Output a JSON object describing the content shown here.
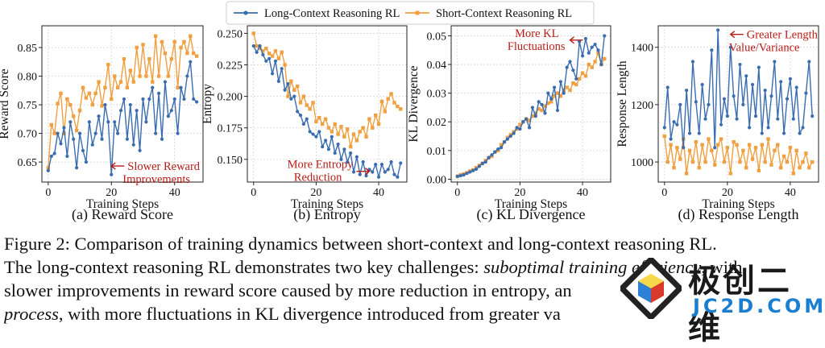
{
  "legend": [
    {
      "label": "Long-Context Reasoning RL",
      "color": "#3a6db0"
    },
    {
      "label": "Short-Context Reasoning RL",
      "color": "#f0a040"
    }
  ],
  "chart_data": [
    {
      "type": "line",
      "title": "(a) Reward Score",
      "xlabel": "Training Steps",
      "ylabel": "Reward Score",
      "xlim": [
        -2,
        49
      ],
      "ylim": [
        0.615,
        0.888
      ],
      "xticks": [
        0,
        20,
        40
      ],
      "yticks": [
        0.65,
        0.7,
        0.75,
        0.8,
        0.85
      ],
      "ytick_labels": [
        "0.65",
        "0.70",
        "0.75",
        "0.80",
        "0.85"
      ],
      "grid": true,
      "annotation": {
        "text": [
          "Slower Reward",
          "Improvements"
        ],
        "arrow_tip": [
          20,
          0.643
        ],
        "text_anchor": [
          34,
          0.643
        ]
      },
      "series": [
        {
          "name": "Long-Context Reasoning RL",
          "x": [
            0,
            1,
            2,
            3,
            4,
            5,
            6,
            7,
            8,
            9,
            10,
            11,
            12,
            13,
            14,
            15,
            16,
            17,
            18,
            19,
            20,
            21,
            22,
            23,
            24,
            25,
            26,
            27,
            28,
            29,
            30,
            31,
            32,
            33,
            34,
            35,
            36,
            37,
            38,
            39,
            40,
            41,
            42,
            43,
            44,
            45,
            46,
            47
          ],
          "values": [
            0.635,
            0.66,
            0.665,
            0.7,
            0.682,
            0.71,
            0.66,
            0.72,
            0.69,
            0.64,
            0.7,
            0.67,
            0.65,
            0.72,
            0.68,
            0.7,
            0.73,
            0.69,
            0.75,
            0.72,
            0.628,
            0.72,
            0.7,
            0.74,
            0.76,
            0.69,
            0.75,
            0.68,
            0.74,
            0.67,
            0.76,
            0.72,
            0.76,
            0.78,
            0.7,
            0.77,
            0.69,
            0.79,
            0.73,
            0.74,
            0.76,
            0.7,
            0.78,
            0.76,
            0.8,
            0.825,
            0.76,
            0.755
          ]
        },
        {
          "name": "Short-Context Reasoning RL",
          "x": [
            0,
            1,
            2,
            3,
            4,
            5,
            6,
            7,
            8,
            9,
            10,
            11,
            12,
            13,
            14,
            15,
            16,
            17,
            18,
            19,
            20,
            21,
            22,
            23,
            24,
            25,
            26,
            27,
            28,
            29,
            30,
            31,
            32,
            33,
            34,
            35,
            36,
            37,
            38,
            39,
            40,
            41,
            42,
            43,
            44,
            45,
            46,
            47
          ],
          "values": [
            0.64,
            0.715,
            0.7,
            0.752,
            0.77,
            0.7,
            0.76,
            0.75,
            0.73,
            0.705,
            0.74,
            0.78,
            0.762,
            0.77,
            0.75,
            0.77,
            0.79,
            0.748,
            0.78,
            0.82,
            0.76,
            0.8,
            0.78,
            0.79,
            0.83,
            0.78,
            0.81,
            0.79,
            0.85,
            0.8,
            0.855,
            0.8,
            0.83,
            0.79,
            0.87,
            0.8,
            0.86,
            0.84,
            0.8,
            0.83,
            0.86,
            0.78,
            0.85,
            0.86,
            0.84,
            0.87,
            0.84,
            0.835
          ]
        }
      ]
    },
    {
      "type": "line",
      "title": "(b) Entropy",
      "xlabel": "Training Steps",
      "ylabel": "Entropy",
      "xlim": [
        -2,
        49
      ],
      "ylim": [
        0.132,
        0.256
      ],
      "xticks": [
        0,
        20,
        40
      ],
      "yticks": [
        0.15,
        0.175,
        0.2,
        0.225,
        0.25
      ],
      "ytick_labels": [
        "0.150",
        "0.175",
        "0.200",
        "0.225",
        "0.250"
      ],
      "grid": true,
      "annotation": {
        "text": [
          "More Entropy",
          "Reduction"
        ],
        "arrow_tip": [
          37,
          0.1405
        ],
        "text_anchor": [
          27,
          0.1405
        ]
      },
      "series": [
        {
          "name": "Long-Context Reasoning RL",
          "x": [
            0,
            1,
            2,
            3,
            4,
            5,
            6,
            7,
            8,
            9,
            10,
            11,
            12,
            13,
            14,
            15,
            16,
            17,
            18,
            19,
            20,
            21,
            22,
            23,
            24,
            25,
            26,
            27,
            28,
            29,
            30,
            31,
            32,
            33,
            34,
            35,
            36,
            37,
            38,
            39,
            40,
            41,
            42,
            43,
            44,
            45,
            46,
            47
          ],
          "values": [
            0.24,
            0.235,
            0.24,
            0.233,
            0.228,
            0.23,
            0.218,
            0.228,
            0.212,
            0.222,
            0.205,
            0.21,
            0.198,
            0.2,
            0.188,
            0.185,
            0.178,
            0.182,
            0.172,
            0.17,
            0.168,
            0.172,
            0.16,
            0.165,
            0.158,
            0.168,
            0.155,
            0.162,
            0.15,
            0.158,
            0.148,
            0.155,
            0.14,
            0.152,
            0.138,
            0.148,
            0.137,
            0.142,
            0.14,
            0.146,
            0.136,
            0.146,
            0.14,
            0.142,
            0.148,
            0.138,
            0.136,
            0.147
          ]
        },
        {
          "name": "Short-Context Reasoning RL",
          "x": [
            0,
            1,
            2,
            3,
            4,
            5,
            6,
            7,
            8,
            9,
            10,
            11,
            12,
            13,
            14,
            15,
            16,
            17,
            18,
            19,
            20,
            21,
            22,
            23,
            24,
            25,
            26,
            27,
            28,
            29,
            30,
            31,
            32,
            33,
            34,
            35,
            36,
            37,
            38,
            39,
            40,
            41,
            42,
            43,
            44,
            45,
            46,
            47
          ],
          "values": [
            0.25,
            0.24,
            0.238,
            0.236,
            0.238,
            0.234,
            0.232,
            0.236,
            0.23,
            0.235,
            0.225,
            0.2,
            0.212,
            0.205,
            0.208,
            0.195,
            0.2,
            0.193,
            0.19,
            0.195,
            0.18,
            0.183,
            0.178,
            0.182,
            0.175,
            0.172,
            0.178,
            0.17,
            0.176,
            0.168,
            0.174,
            0.16,
            0.17,
            0.165,
            0.172,
            0.175,
            0.168,
            0.182,
            0.175,
            0.185,
            0.178,
            0.196,
            0.188,
            0.198,
            0.202,
            0.195,
            0.192,
            0.19
          ]
        }
      ]
    },
    {
      "type": "line",
      "title": "(c) KL Divergence",
      "xlabel": "Training Steps",
      "ylabel": "KL Divergence",
      "xlim": [
        -2,
        49
      ],
      "ylim": [
        -0.001,
        0.0535
      ],
      "xticks": [
        0,
        20,
        40
      ],
      "yticks": [
        0.0,
        0.01,
        0.02,
        0.03,
        0.04,
        0.05
      ],
      "ytick_labels": [
        "0.00",
        "0.01",
        "0.02",
        "0.03",
        "0.04",
        "0.05"
      ],
      "grid": true,
      "annotation": {
        "text": [
          "More KL",
          "Fluctuations"
        ],
        "arrow_tip": [
          36,
          0.0485
        ],
        "text_anchor": [
          40,
          0.0485
        ]
      },
      "series": [
        {
          "name": "Long-Context Reasoning RL",
          "x": [
            0,
            1,
            2,
            3,
            4,
            5,
            6,
            7,
            8,
            9,
            10,
            11,
            12,
            13,
            14,
            15,
            16,
            17,
            18,
            19,
            20,
            21,
            22,
            23,
            24,
            25,
            26,
            27,
            28,
            29,
            30,
            31,
            32,
            33,
            34,
            35,
            36,
            37,
            38,
            39,
            40,
            41,
            42,
            43,
            44,
            45,
            46,
            47
          ],
          "values": [
            0.001,
            0.0012,
            0.0015,
            0.002,
            0.0025,
            0.003,
            0.0035,
            0.0045,
            0.0055,
            0.006,
            0.0075,
            0.0085,
            0.0095,
            0.0105,
            0.011,
            0.013,
            0.014,
            0.015,
            0.016,
            0.018,
            0.0175,
            0.02,
            0.021,
            0.018,
            0.025,
            0.022,
            0.027,
            0.026,
            0.023,
            0.03,
            0.028,
            0.032,
            0.024,
            0.034,
            0.03,
            0.039,
            0.041,
            0.038,
            0.035,
            0.048,
            0.043,
            0.049,
            0.044,
            0.046,
            0.047,
            0.045,
            0.04,
            0.05
          ]
        },
        {
          "name": "Short-Context Reasoning RL",
          "x": [
            0,
            1,
            2,
            3,
            4,
            5,
            6,
            7,
            8,
            9,
            10,
            11,
            12,
            13,
            14,
            15,
            16,
            17,
            18,
            19,
            20,
            21,
            22,
            23,
            24,
            25,
            26,
            27,
            28,
            29,
            30,
            31,
            32,
            33,
            34,
            35,
            36,
            37,
            38,
            39,
            40,
            41,
            42,
            43,
            44,
            45,
            46,
            47
          ],
          "values": [
            0.001,
            0.0015,
            0.0018,
            0.0022,
            0.0028,
            0.0032,
            0.004,
            0.0048,
            0.0055,
            0.0065,
            0.0075,
            0.008,
            0.0095,
            0.01,
            0.012,
            0.013,
            0.0145,
            0.0155,
            0.0165,
            0.0175,
            0.019,
            0.02,
            0.021,
            0.0205,
            0.022,
            0.023,
            0.0245,
            0.024,
            0.0255,
            0.0265,
            0.027,
            0.029,
            0.03,
            0.029,
            0.031,
            0.032,
            0.031,
            0.0335,
            0.033,
            0.035,
            0.037,
            0.036,
            0.04,
            0.039,
            0.041,
            0.044,
            0.04,
            0.042
          ]
        }
      ]
    },
    {
      "type": "line",
      "title": "(d) Response Length",
      "xlabel": "Training Steps",
      "ylabel": "Response Length",
      "xlim": [
        -2,
        49
      ],
      "ylim": [
        930,
        1475
      ],
      "xticks": [
        0,
        20,
        40
      ],
      "yticks": [
        1000,
        1200,
        1400
      ],
      "ytick_labels": [
        "1000",
        "1200",
        "1400"
      ],
      "grid": true,
      "annotation": {
        "text": [
          "Greater Length",
          "Value/Variance"
        ],
        "arrow_tip": [
          21,
          1445
        ],
        "text_anchor": [
          25,
          1445
        ]
      },
      "series": [
        {
          "name": "Long-Context Reasoning RL",
          "x": [
            0,
            1,
            2,
            3,
            4,
            5,
            6,
            7,
            8,
            9,
            10,
            11,
            12,
            13,
            14,
            15,
            16,
            17,
            18,
            19,
            20,
            21,
            22,
            23,
            24,
            25,
            26,
            27,
            28,
            29,
            30,
            31,
            32,
            33,
            34,
            35,
            36,
            37,
            38,
            39,
            40,
            41,
            42,
            43,
            44,
            45,
            46,
            47
          ],
          "values": [
            1120,
            1260,
            1080,
            1140,
            1130,
            1200,
            1050,
            1250,
            1100,
            1350,
            1210,
            1100,
            1270,
            1150,
            1200,
            1390,
            1050,
            1460,
            1130,
            1220,
            1160,
            1400,
            1230,
            1150,
            1340,
            1200,
            1300,
            1120,
            1270,
            1160,
            1330,
            1100,
            1250,
            1120,
            1230,
            1350,
            1150,
            1280,
            1100,
            1220,
            1290,
            1150,
            1260,
            1100,
            1120,
            1240,
            1350,
            1160
          ]
        },
        {
          "name": "Short-Context Reasoning RL",
          "x": [
            0,
            1,
            2,
            3,
            4,
            5,
            6,
            7,
            8,
            9,
            10,
            11,
            12,
            13,
            14,
            15,
            16,
            17,
            18,
            19,
            20,
            21,
            22,
            23,
            24,
            25,
            26,
            27,
            28,
            29,
            30,
            31,
            32,
            33,
            34,
            35,
            36,
            37,
            38,
            39,
            40,
            41,
            42,
            43,
            44,
            45,
            46,
            47
          ],
          "values": [
            1090,
            1000,
            1060,
            980,
            1050,
            1010,
            1080,
            960,
            1040,
            1000,
            1070,
            980,
            1060,
            1000,
            1080,
            1040,
            990,
            1060,
            1080,
            1000,
            1050,
            960,
            1070,
            1060,
            1000,
            1040,
            980,
            1060,
            1010,
            1050,
            970,
            1060,
            1000,
            1080,
            990,
            1040,
            1060,
            980,
            1020,
            1000,
            1050,
            960,
            1040,
            980,
            1000,
            1030,
            980,
            1000
          ]
        }
      ]
    }
  ],
  "caption": {
    "line1": "Figure 2: Comparison of training dynamics between short-context and long-context reasoning RL.",
    "line2_a": "The long-context reasoning RL demonstrates two key challenges: ",
    "line2_em": "suboptimal training efficiency",
    "line2_b": ", with",
    "line3": "slower improvements in reward score caused by more reduction in entropy, an",
    "line4_em": "process",
    "line4_b": ", with more fluctuations in KL divergence introduced from greater va"
  },
  "watermark": {
    "cn": "极创二维",
    "en": "JC2D.COM"
  },
  "colors": {
    "long": "#3a6db0",
    "short": "#f0a040",
    "annotation": "#b81d18",
    "grid": "#d4d4d4"
  }
}
